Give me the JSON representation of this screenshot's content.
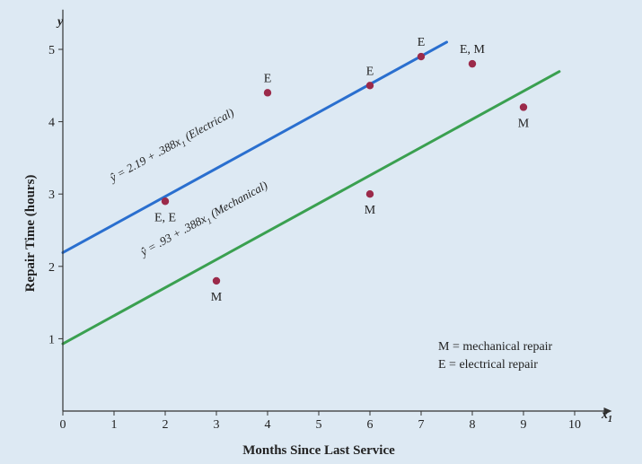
{
  "chart_data": {
    "type": "scatter",
    "xlabel": "Months Since Last Service",
    "ylabel": "Repair Time (hours)",
    "x_axis_var": "x",
    "x_axis_var_sub": "1",
    "y_axis_var": "y",
    "xlim": [
      0,
      10.5
    ],
    "ylim": [
      0,
      5.5
    ],
    "x_ticks": [
      0,
      1,
      2,
      3,
      4,
      5,
      6,
      7,
      8,
      9,
      10
    ],
    "y_ticks": [
      1,
      2,
      3,
      4,
      5
    ],
    "grid": false,
    "points": [
      {
        "x": 2,
        "y": 2.9,
        "label": "E, E"
      },
      {
        "x": 3,
        "y": 1.8,
        "label": "M"
      },
      {
        "x": 4,
        "y": 4.4,
        "label": "E"
      },
      {
        "x": 6,
        "y": 4.5,
        "label": "E"
      },
      {
        "x": 6,
        "y": 3.0,
        "label": "M"
      },
      {
        "x": 7,
        "y": 4.9,
        "label": "E"
      },
      {
        "x": 8,
        "y": 4.8,
        "label": "E, M"
      },
      {
        "x": 9,
        "y": 4.2,
        "label": "M"
      }
    ],
    "lines": [
      {
        "intercept": 2.19,
        "slope": 0.388,
        "x_start": 0,
        "x_end": 7.5,
        "color": "#2a6fcf",
        "equation_lhs": "ŷ",
        "equation_mid": " = 2.19 + .388x",
        "equation_sub": "1",
        "equation_tail": "  (Electrical)"
      },
      {
        "intercept": 0.93,
        "slope": 0.388,
        "x_start": 0,
        "x_end": 9.7,
        "color": "#3aa050",
        "equation_lhs": "ŷ",
        "equation_mid": " = .93 + .388x",
        "equation_sub": "1",
        "equation_tail": "  (Mechanical)"
      }
    ],
    "legend": [
      "M = mechanical repair",
      "E = electrical repair"
    ],
    "legend_position": "bottom-right",
    "point_color": "#9b2a4a",
    "axis_color": "#333333",
    "background": "#dde9f3"
  }
}
